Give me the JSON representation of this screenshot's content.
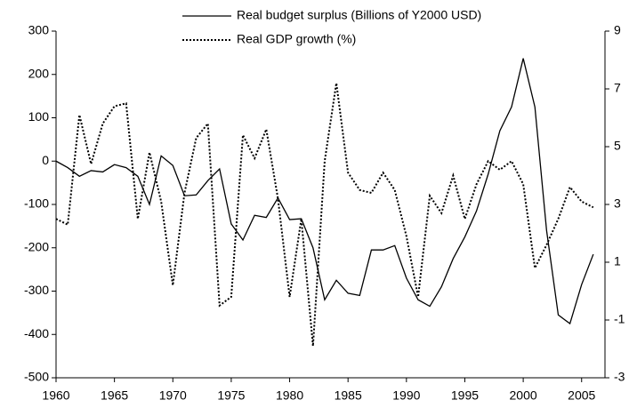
{
  "chart_data": {
    "type": "line",
    "x": [
      1960,
      1961,
      1962,
      1963,
      1964,
      1965,
      1966,
      1967,
      1968,
      1969,
      1970,
      1971,
      1972,
      1973,
      1974,
      1975,
      1976,
      1977,
      1978,
      1979,
      1980,
      1981,
      1982,
      1983,
      1984,
      1985,
      1986,
      1987,
      1988,
      1989,
      1990,
      1991,
      1992,
      1993,
      1994,
      1995,
      1996,
      1997,
      1998,
      1999,
      2000,
      2001,
      2002,
      2003,
      2004,
      2005,
      2006
    ],
    "series": [
      {
        "name": "Real budget surplus (Billions of Y2000 USD)",
        "color": "#000000",
        "style": "solid",
        "values": [
          0,
          -15,
          -35,
          -22,
          -25,
          -8,
          -15,
          -35,
          -100,
          12,
          -10,
          -80,
          -78,
          -45,
          -18,
          -145,
          -182,
          -125,
          -130,
          -85,
          -135,
          -133,
          -200,
          -320,
          -275,
          -305,
          -310,
          -205,
          -205,
          -195,
          -270,
          -320,
          -335,
          -290,
          -225,
          -175,
          -115,
          -30,
          70,
          125,
          237,
          125,
          -160,
          -355,
          -375,
          -285,
          -215
        ]
      },
      {
        "name": "Real GDP growth (%)",
        "color": "#000000",
        "style": "dotted",
        "axis": "y2",
        "values": [
          2.5,
          2.3,
          6.1,
          4.4,
          5.8,
          6.4,
          6.5,
          2.5,
          4.8,
          3.1,
          0.2,
          3.4,
          5.3,
          5.8,
          -0.5,
          -0.2,
          5.4,
          4.6,
          5.6,
          3.2,
          -0.2,
          2.5,
          -1.9,
          4.5,
          7.2,
          4.1,
          3.5,
          3.4,
          4.1,
          3.5,
          1.9,
          -0.2,
          3.3,
          2.7,
          4.0,
          2.5,
          3.7,
          4.5,
          4.2,
          4.5,
          3.7,
          0.8,
          1.6,
          2.5,
          3.6,
          3.1,
          2.9
        ]
      }
    ],
    "xlim": [
      1960,
      2007
    ],
    "xticks": [
      1960,
      1965,
      1970,
      1975,
      1980,
      1985,
      1990,
      1995,
      2000,
      2005
    ],
    "ylim": [
      -500,
      300
    ],
    "yticks": [
      -500,
      -400,
      -300,
      -200,
      -100,
      0,
      100,
      200,
      300
    ],
    "y2lim": [
      -3,
      9
    ],
    "y2ticks": [
      -3,
      -1,
      1,
      3,
      5,
      7,
      9
    ]
  }
}
